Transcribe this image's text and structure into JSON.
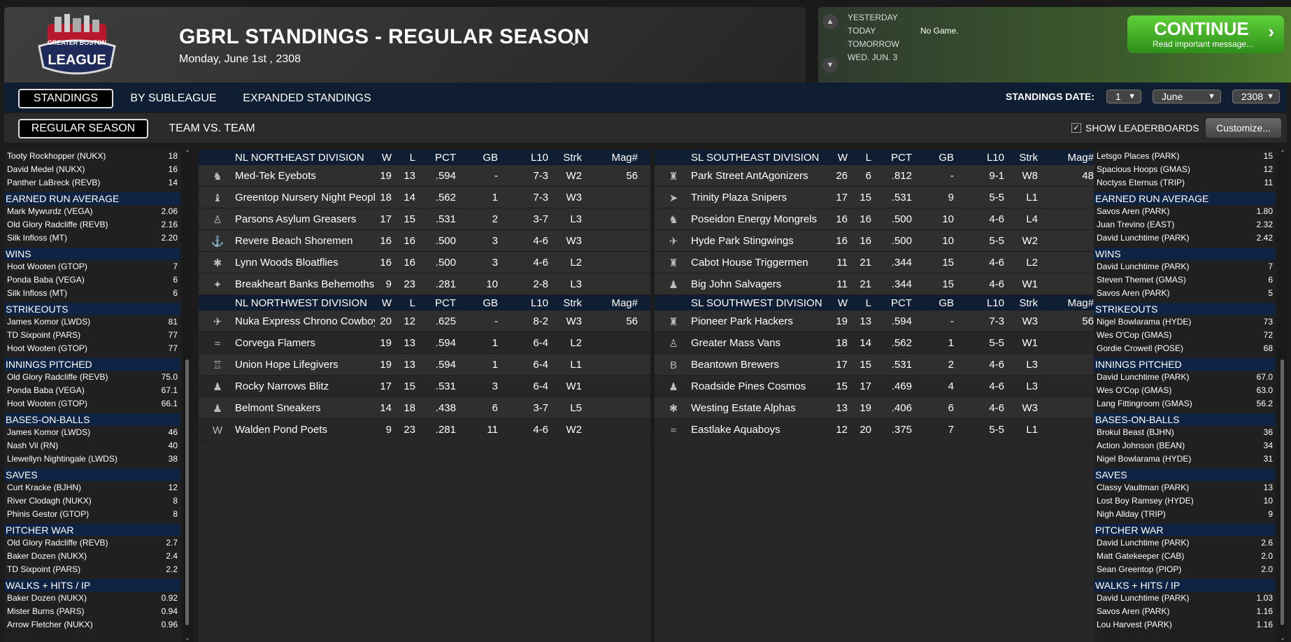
{
  "header": {
    "title": "GBRL STANDINGS - REGULAR SEASON",
    "date": "Monday, June 1st , 2308",
    "logo_top": "GREATER BOSTON",
    "logo_main": "LEAGUE"
  },
  "games": {
    "days": [
      "YESTERDAY",
      "TODAY",
      "TOMORROW",
      "WED. JUN. 3"
    ],
    "today_status": "No Game.",
    "continue_label": "CONTINUE",
    "continue_sub": "Read important message..."
  },
  "tabs": {
    "row1": [
      "STANDINGS",
      "BY SUBLEAGUE",
      "EXPANDED STANDINGS"
    ],
    "row2": [
      "REGULAR SEASON",
      "TEAM VS. TEAM"
    ]
  },
  "date_selector": {
    "label": "STANDINGS DATE:",
    "day": "1",
    "month": "June",
    "year": "2308"
  },
  "options": {
    "show_leaderboards": "SHOW LEADERBOARDS",
    "customize": "Customize..."
  },
  "colors": {
    "accent_green": "#3fae24",
    "header_navy": "#0f1e33"
  },
  "left_leaders": [
    {
      "title": "",
      "rows": [
        [
          "Tooty Rockhopper (NUKX)",
          "18"
        ],
        [
          "David Medel (NUKX)",
          "16"
        ],
        [
          "Panther LaBreck (REVB)",
          "14"
        ]
      ]
    },
    {
      "title": "EARNED RUN AVERAGE",
      "rows": [
        [
          "Mark Mywurdz (VEGA)",
          "2.06"
        ],
        [
          "Old Glory Radcliffe (REVB)",
          "2.16"
        ],
        [
          "Silk Infloss (MT)",
          "2.20"
        ]
      ]
    },
    {
      "title": "WINS",
      "rows": [
        [
          "Hoot Wooten (GTOP)",
          "7"
        ],
        [
          "Ponda Baba (VEGA)",
          "6"
        ],
        [
          "Silk Infloss (MT)",
          "6"
        ]
      ]
    },
    {
      "title": "STRIKEOUTS",
      "rows": [
        [
          "James Komor (LWDS)",
          "81"
        ],
        [
          "TD Sixpoint (PARS)",
          "77"
        ],
        [
          "Hoot Wooten (GTOP)",
          "77"
        ]
      ]
    },
    {
      "title": "INNINGS PITCHED",
      "rows": [
        [
          "Old Glory Radcliffe (REVB)",
          "75.0"
        ],
        [
          "Ponda Baba (VEGA)",
          "67.1"
        ],
        [
          "Hoot Wooten (GTOP)",
          "66.1"
        ]
      ]
    },
    {
      "title": "BASES-ON-BALLS",
      "rows": [
        [
          "James Komor (LWDS)",
          "46"
        ],
        [
          "Nash Vil (RN)",
          "40"
        ],
        [
          "Llewellyn Nightingale (LWDS)",
          "38"
        ]
      ]
    },
    {
      "title": "SAVES",
      "rows": [
        [
          "Curt Kracke (BJHN)",
          "12"
        ],
        [
          "River Clodagh (NUKX)",
          "8"
        ],
        [
          "Phinis Gestor (GTOP)",
          "8"
        ]
      ]
    },
    {
      "title": "PITCHER WAR",
      "rows": [
        [
          "Old Glory Radcliffe (REVB)",
          "2.7"
        ],
        [
          "Baker Dozen (NUKX)",
          "2.4"
        ],
        [
          "TD Sixpoint (PARS)",
          "2.2"
        ]
      ]
    },
    {
      "title": "WALKS + HITS / IP",
      "rows": [
        [
          "Baker Dozen (NUKX)",
          "0.92"
        ],
        [
          "Mister Burns (PARS)",
          "0.94"
        ],
        [
          "Arrow Fletcher (NUKX)",
          "0.96"
        ]
      ]
    }
  ],
  "right_leaders": [
    {
      "title": "",
      "rows": [
        [
          "Letsgo Places (PARK)",
          "15"
        ],
        [
          "Spacious Hoops (GMAS)",
          "12"
        ],
        [
          "Noctyss Eternus (TRIP)",
          "11"
        ]
      ]
    },
    {
      "title": "EARNED RUN AVERAGE",
      "rows": [
        [
          "Savos Aren (PARK)",
          "1.80"
        ],
        [
          "Juan Trevino (EAST)",
          "2.32"
        ],
        [
          "David Lunchtime (PARK)",
          "2.42"
        ]
      ]
    },
    {
      "title": "WINS",
      "rows": [
        [
          "David Lunchtime (PARK)",
          "7"
        ],
        [
          "Steven Themet (GMAS)",
          "6"
        ],
        [
          "Savos Aren (PARK)",
          "5"
        ]
      ]
    },
    {
      "title": "STRIKEOUTS",
      "rows": [
        [
          "Nigel Bowlarama (HYDE)",
          "73"
        ],
        [
          "Wes O'Cop (GMAS)",
          "72"
        ],
        [
          "Gordie Crowell (POSE)",
          "68"
        ]
      ]
    },
    {
      "title": "INNINGS PITCHED",
      "rows": [
        [
          "David Lunchtime (PARK)",
          "67.0"
        ],
        [
          "Wes O'Cop (GMAS)",
          "63.0"
        ],
        [
          "Lang Fittingroom (GMAS)",
          "56.2"
        ]
      ]
    },
    {
      "title": "BASES-ON-BALLS",
      "rows": [
        [
          "Brokul Beast (BJHN)",
          "36"
        ],
        [
          "Action Johnson (BEAN)",
          "34"
        ],
        [
          "Nigel Bowlarama (HYDE)",
          "31"
        ]
      ]
    },
    {
      "title": "SAVES",
      "rows": [
        [
          "Classy Vaultman (PARK)",
          "13"
        ],
        [
          "Lost Boy Ramsey (HYDE)",
          "10"
        ],
        [
          "Nigh Allday (TRIP)",
          "9"
        ]
      ]
    },
    {
      "title": "PITCHER WAR",
      "rows": [
        [
          "David Lunchtime (PARK)",
          "2.6"
        ],
        [
          "Matt Gatekeeper (CAB)",
          "2.0"
        ],
        [
          "Sean Greentop (PIOP)",
          "2.0"
        ]
      ]
    },
    {
      "title": "WALKS + HITS / IP",
      "rows": [
        [
          "David Lunchtime (PARK)",
          "1.03"
        ],
        [
          "Savos Aren (PARK)",
          "1.16"
        ],
        [
          "Lou Harvest (PARK)",
          "1.16"
        ]
      ]
    }
  ],
  "columns": [
    "W",
    "L",
    "PCT",
    "GB",
    "L10",
    "Strk",
    "Mag#"
  ],
  "panels": [
    {
      "divisions": [
        {
          "name": "NL NORTHEAST DIVISION",
          "teams": [
            {
              "icon": "♞",
              "name": "Med-Tek Eyebots",
              "w": "19",
              "l": "13",
              "pct": ".594",
              "gb": "-",
              "l10": "7-3",
              "strk": "W2",
              "mag": "56"
            },
            {
              "icon": "♝",
              "name": "Greentop Nursery Night Peopl",
              "w": "18",
              "l": "14",
              "pct": ".562",
              "gb": "1",
              "l10": "7-3",
              "strk": "W3",
              "mag": ""
            },
            {
              "icon": "♙",
              "name": "Parsons Asylum Greasers",
              "w": "17",
              "l": "15",
              "pct": ".531",
              "gb": "2",
              "l10": "3-7",
              "strk": "L3",
              "mag": ""
            },
            {
              "icon": "⚓",
              "name": "Revere Beach Shoremen",
              "w": "16",
              "l": "16",
              "pct": ".500",
              "gb": "3",
              "l10": "4-6",
              "strk": "W3",
              "mag": ""
            },
            {
              "icon": "✱",
              "name": "Lynn Woods Bloatflies",
              "w": "16",
              "l": "16",
              "pct": ".500",
              "gb": "3",
              "l10": "4-6",
              "strk": "L2",
              "mag": ""
            },
            {
              "icon": "✦",
              "name": "Breakheart Banks Behemoths",
              "w": "9",
              "l": "23",
              "pct": ".281",
              "gb": "10",
              "l10": "2-8",
              "strk": "L3",
              "mag": ""
            }
          ]
        },
        {
          "name": "NL NORTHWEST DIVISION",
          "teams": [
            {
              "icon": "✈",
              "name": "Nuka Express Chrono Cowboy",
              "w": "20",
              "l": "12",
              "pct": ".625",
              "gb": "-",
              "l10": "8-2",
              "strk": "W3",
              "mag": "56"
            },
            {
              "icon": "≈",
              "name": "Corvega Flamers",
              "w": "19",
              "l": "13",
              "pct": ".594",
              "gb": "1",
              "l10": "6-4",
              "strk": "L2",
              "mag": ""
            },
            {
              "icon": "♖",
              "name": "Union Hope Lifegivers",
              "w": "19",
              "l": "13",
              "pct": ".594",
              "gb": "1",
              "l10": "6-4",
              "strk": "L1",
              "mag": ""
            },
            {
              "icon": "♟",
              "name": "Rocky Narrows Blitz",
              "w": "17",
              "l": "15",
              "pct": ".531",
              "gb": "3",
              "l10": "6-4",
              "strk": "W1",
              "mag": ""
            },
            {
              "icon": "♟",
              "name": "Belmont Sneakers",
              "w": "14",
              "l": "18",
              "pct": ".438",
              "gb": "6",
              "l10": "3-7",
              "strk": "L5",
              "mag": ""
            },
            {
              "icon": "W",
              "name": "Walden Pond Poets",
              "w": "9",
              "l": "23",
              "pct": ".281",
              "gb": "11",
              "l10": "4-6",
              "strk": "W2",
              "mag": ""
            }
          ]
        }
      ]
    },
    {
      "divisions": [
        {
          "name": "SL SOUTHEAST DIVISION",
          "teams": [
            {
              "icon": "♜",
              "name": "Park Street AntAgonizers",
              "w": "26",
              "l": "6",
              "pct": ".812",
              "gb": "-",
              "l10": "9-1",
              "strk": "W8",
              "mag": "48"
            },
            {
              "icon": "➤",
              "name": "Trinity Plaza Snipers",
              "w": "17",
              "l": "15",
              "pct": ".531",
              "gb": "9",
              "l10": "5-5",
              "strk": "L1",
              "mag": ""
            },
            {
              "icon": "♞",
              "name": "Poseidon Energy Mongrels",
              "w": "16",
              "l": "16",
              "pct": ".500",
              "gb": "10",
              "l10": "4-6",
              "strk": "L4",
              "mag": ""
            },
            {
              "icon": "✈",
              "name": "Hyde Park Stingwings",
              "w": "16",
              "l": "16",
              "pct": ".500",
              "gb": "10",
              "l10": "5-5",
              "strk": "W2",
              "mag": ""
            },
            {
              "icon": "♜",
              "name": "Cabot House Triggermen",
              "w": "11",
              "l": "21",
              "pct": ".344",
              "gb": "15",
              "l10": "4-6",
              "strk": "L2",
              "mag": ""
            },
            {
              "icon": "♟",
              "name": "Big John Salvagers",
              "w": "11",
              "l": "21",
              "pct": ".344",
              "gb": "15",
              "l10": "4-6",
              "strk": "W1",
              "mag": ""
            }
          ]
        },
        {
          "name": "SL SOUTHWEST DIVISION",
          "teams": [
            {
              "icon": "♜",
              "name": "Pioneer Park Hackers",
              "w": "19",
              "l": "13",
              "pct": ".594",
              "gb": "-",
              "l10": "7-3",
              "strk": "W3",
              "mag": "56"
            },
            {
              "icon": "♙",
              "name": "Greater Mass Vans",
              "w": "18",
              "l": "14",
              "pct": ".562",
              "gb": "1",
              "l10": "5-5",
              "strk": "W1",
              "mag": ""
            },
            {
              "icon": "B",
              "name": "Beantown Brewers",
              "w": "17",
              "l": "15",
              "pct": ".531",
              "gb": "2",
              "l10": "4-6",
              "strk": "L3",
              "mag": ""
            },
            {
              "icon": "♟",
              "name": "Roadside Pines Cosmos",
              "w": "15",
              "l": "17",
              "pct": ".469",
              "gb": "4",
              "l10": "4-6",
              "strk": "L3",
              "mag": ""
            },
            {
              "icon": "✱",
              "name": "Westing Estate Alphas",
              "w": "13",
              "l": "19",
              "pct": ".406",
              "gb": "6",
              "l10": "4-6",
              "strk": "W3",
              "mag": ""
            },
            {
              "icon": "≈",
              "name": "Eastlake Aquaboys",
              "w": "12",
              "l": "20",
              "pct": ".375",
              "gb": "7",
              "l10": "5-5",
              "strk": "L1",
              "mag": ""
            }
          ]
        }
      ]
    }
  ]
}
